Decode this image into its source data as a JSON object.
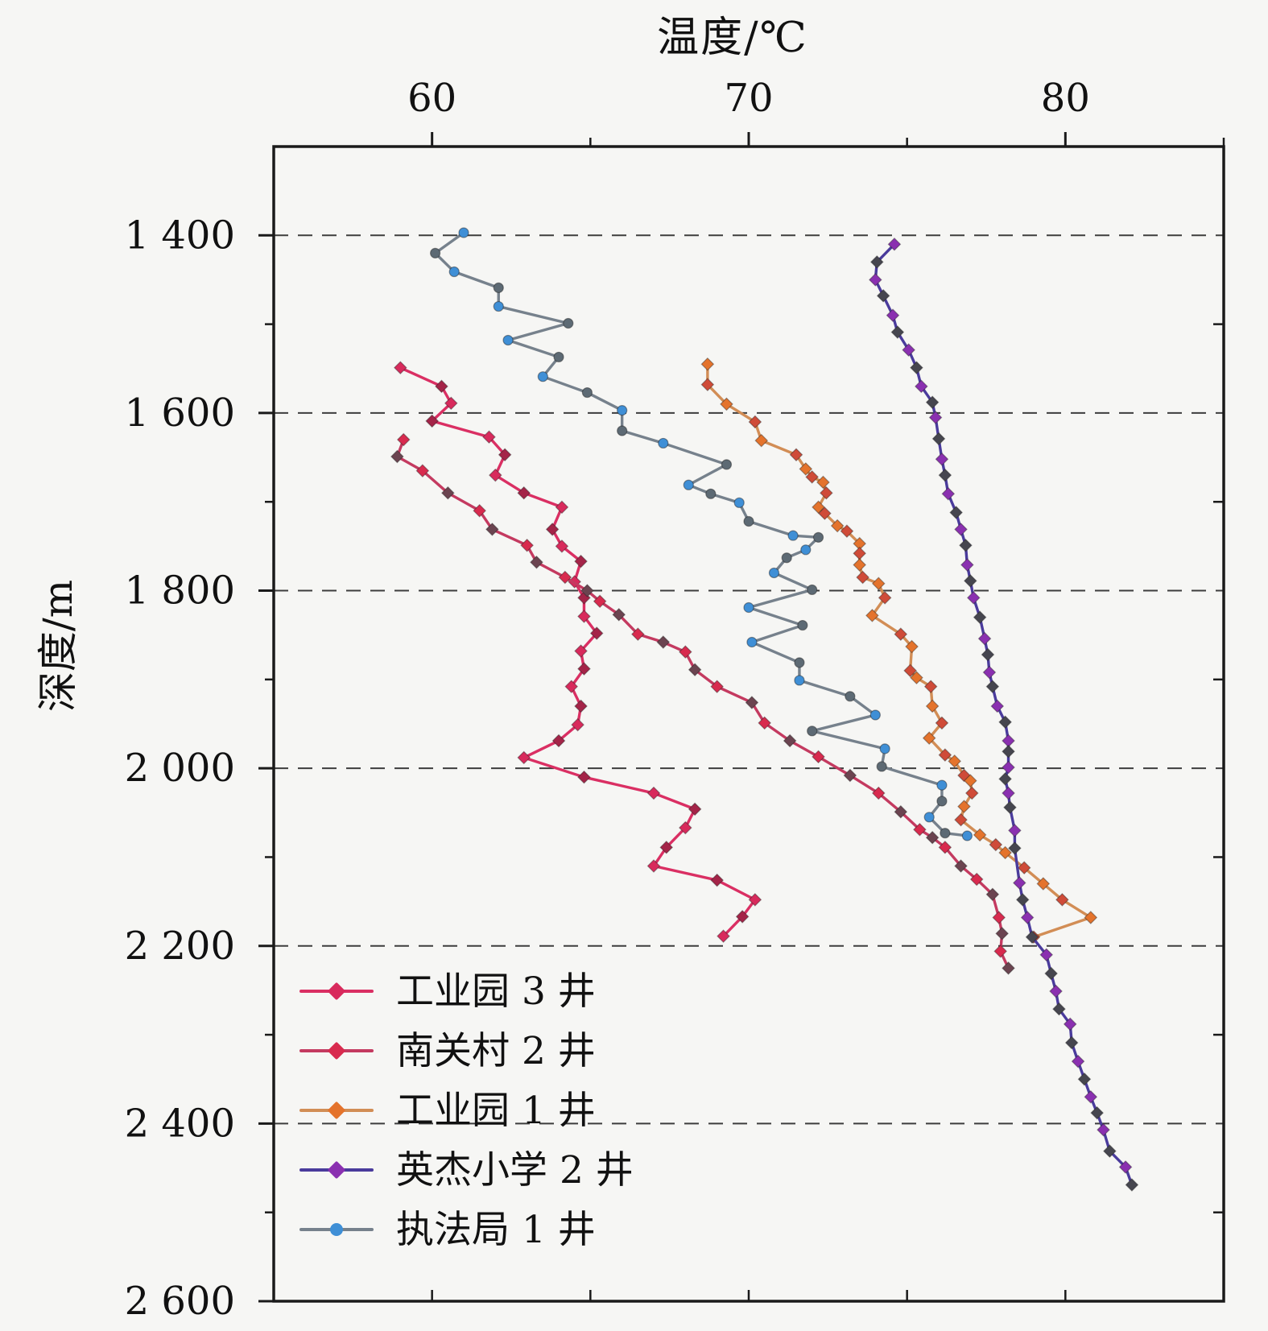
{
  "page": {
    "background": "#f6f6f4"
  },
  "chart_data": {
    "type": "line",
    "title": "温度/℃",
    "xlabel": "温度/℃",
    "ylabel": "深度/m",
    "grid": "horizontal-dashed",
    "legend_position": "inside-bottom-left",
    "x_axis": {
      "min": 55,
      "max": 85,
      "position": "top",
      "major_ticks": [
        60,
        70,
        80
      ],
      "major_tick_labels": [
        "60",
        "70",
        "80"
      ],
      "minor_ticks": [
        65,
        75,
        85
      ]
    },
    "y_axis": {
      "min": 1300,
      "max": 2600,
      "inverted": true,
      "major_ticks": [
        1400,
        1600,
        1800,
        2000,
        2200,
        2400,
        2600
      ],
      "major_tick_labels": [
        "1 400",
        "1 600",
        "1 800",
        "2 000",
        "2 200",
        "2 400",
        "2 600"
      ],
      "minor_ticks": [
        1500,
        1700,
        1900,
        2100,
        2300,
        2500
      ],
      "gridline_ticks": [
        1400,
        1600,
        1800,
        2000,
        2200,
        2400
      ]
    },
    "series": [
      {
        "name": "工业园 3 井",
        "line_color": "#da2f63",
        "marker_color": "#d82a5c",
        "marker_alt_color": "#a42448",
        "marker_shape": "diamond",
        "points": [
          [
            59.0,
            1549
          ],
          [
            60.3,
            1570
          ],
          [
            60.6,
            1589
          ],
          [
            60.0,
            1609
          ],
          [
            61.8,
            1627
          ],
          [
            62.3,
            1647
          ],
          [
            62.0,
            1670
          ],
          [
            62.9,
            1690
          ],
          [
            64.1,
            1706
          ],
          [
            63.8,
            1731
          ],
          [
            64.1,
            1750
          ],
          [
            64.7,
            1767
          ],
          [
            64.5,
            1790
          ],
          [
            64.8,
            1808
          ],
          [
            64.8,
            1829
          ],
          [
            65.2,
            1848
          ],
          [
            64.7,
            1868
          ],
          [
            64.8,
            1888
          ],
          [
            64.4,
            1908
          ],
          [
            64.7,
            1930
          ],
          [
            64.6,
            1951
          ],
          [
            64.0,
            1969
          ],
          [
            62.9,
            1988
          ],
          [
            64.8,
            2010
          ],
          [
            67.0,
            2028
          ],
          [
            68.3,
            2046
          ],
          [
            68.0,
            2067
          ],
          [
            67.4,
            2089
          ],
          [
            67.0,
            2110
          ],
          [
            69.0,
            2126
          ],
          [
            70.2,
            2148
          ],
          [
            69.8,
            2167
          ],
          [
            69.2,
            2189
          ]
        ]
      },
      {
        "name": "南关村 2 井",
        "line_color": "#c43a60",
        "marker_color": "#d82a4e",
        "marker_alt_color": "#6b4450",
        "marker_shape": "diamond",
        "points": [
          [
            59.1,
            1630
          ],
          [
            58.9,
            1649
          ],
          [
            59.7,
            1665
          ],
          [
            60.5,
            1690
          ],
          [
            61.5,
            1710
          ],
          [
            61.9,
            1731
          ],
          [
            63.0,
            1749
          ],
          [
            63.3,
            1768
          ],
          [
            64.2,
            1785
          ],
          [
            64.9,
            1800
          ],
          [
            65.3,
            1812
          ],
          [
            65.9,
            1827
          ],
          [
            66.5,
            1849
          ],
          [
            67.3,
            1858
          ],
          [
            68.0,
            1869
          ],
          [
            68.3,
            1889
          ],
          [
            69.0,
            1908
          ],
          [
            70.1,
            1926
          ],
          [
            70.5,
            1949
          ],
          [
            71.3,
            1969
          ],
          [
            72.2,
            1987
          ],
          [
            73.2,
            2008
          ],
          [
            74.1,
            2028
          ],
          [
            74.8,
            2049
          ],
          [
            75.4,
            2069
          ],
          [
            75.8,
            2078
          ],
          [
            76.2,
            2089
          ],
          [
            76.7,
            2110
          ],
          [
            77.2,
            2125
          ],
          [
            77.7,
            2142
          ],
          [
            77.9,
            2168
          ],
          [
            78.0,
            2186
          ],
          [
            77.95,
            2206
          ],
          [
            78.2,
            2225
          ]
        ]
      },
      {
        "name": "工业园 1 井",
        "line_color": "#d28d55",
        "marker_color": "#e4732c",
        "marker_alt_color": "#cf4b38",
        "marker_shape": "diamond",
        "points": [
          [
            68.7,
            1545
          ],
          [
            68.7,
            1568
          ],
          [
            69.3,
            1590
          ],
          [
            70.2,
            1610
          ],
          [
            70.4,
            1631
          ],
          [
            71.5,
            1647
          ],
          [
            71.8,
            1663
          ],
          [
            72.0,
            1672
          ],
          [
            72.35,
            1678
          ],
          [
            72.45,
            1690
          ],
          [
            72.2,
            1706
          ],
          [
            72.4,
            1713
          ],
          [
            72.8,
            1727
          ],
          [
            73.1,
            1733
          ],
          [
            73.5,
            1747
          ],
          [
            73.5,
            1758
          ],
          [
            73.5,
            1771
          ],
          [
            73.6,
            1785
          ],
          [
            74.1,
            1792
          ],
          [
            74.3,
            1808
          ],
          [
            73.9,
            1828
          ],
          [
            74.8,
            1849
          ],
          [
            75.15,
            1863
          ],
          [
            75.1,
            1890
          ],
          [
            75.3,
            1898
          ],
          [
            75.75,
            1908
          ],
          [
            75.8,
            1930
          ],
          [
            76.1,
            1949
          ],
          [
            75.7,
            1966
          ],
          [
            76.2,
            1985
          ],
          [
            76.5,
            1992
          ],
          [
            76.8,
            2008
          ],
          [
            77.0,
            2014
          ],
          [
            77.05,
            2028
          ],
          [
            76.8,
            2043
          ],
          [
            76.7,
            2058
          ],
          [
            77.3,
            2075
          ],
          [
            77.8,
            2086
          ],
          [
            78.1,
            2095
          ],
          [
            78.7,
            2112
          ],
          [
            79.3,
            2130
          ],
          [
            79.9,
            2148
          ],
          [
            80.8,
            2168
          ],
          [
            79.0,
            2190
          ]
        ]
      },
      {
        "name": "英杰小学 2 井",
        "line_color": "#4a3b9c",
        "marker_color": "#8a30b0",
        "marker_alt_color": "#46464f",
        "marker_shape": "diamond",
        "points": [
          [
            74.6,
            1410
          ],
          [
            74.05,
            1430
          ],
          [
            74.0,
            1450
          ],
          [
            74.25,
            1468
          ],
          [
            74.55,
            1490
          ],
          [
            74.7,
            1509
          ],
          [
            75.05,
            1529
          ],
          [
            75.3,
            1549
          ],
          [
            75.45,
            1570
          ],
          [
            75.8,
            1588
          ],
          [
            75.9,
            1605
          ],
          [
            76.0,
            1629
          ],
          [
            76.1,
            1652
          ],
          [
            76.2,
            1670
          ],
          [
            76.3,
            1691
          ],
          [
            76.55,
            1712
          ],
          [
            76.7,
            1731
          ],
          [
            76.85,
            1749
          ],
          [
            76.9,
            1771
          ],
          [
            77.0,
            1789
          ],
          [
            77.1,
            1808
          ],
          [
            77.3,
            1830
          ],
          [
            77.45,
            1854
          ],
          [
            77.55,
            1872
          ],
          [
            77.6,
            1892
          ],
          [
            77.7,
            1908
          ],
          [
            77.85,
            1930
          ],
          [
            78.1,
            1948
          ],
          [
            78.2,
            1969
          ],
          [
            78.2,
            1981
          ],
          [
            78.2,
            1999
          ],
          [
            78.1,
            2012
          ],
          [
            78.2,
            2028
          ],
          [
            78.25,
            2044
          ],
          [
            78.4,
            2070
          ],
          [
            78.4,
            2090
          ],
          [
            78.55,
            2129
          ],
          [
            78.65,
            2148
          ],
          [
            78.8,
            2168
          ],
          [
            78.95,
            2190
          ],
          [
            79.4,
            2210
          ],
          [
            79.55,
            2231
          ],
          [
            79.7,
            2251
          ],
          [
            79.8,
            2271
          ],
          [
            80.15,
            2288
          ],
          [
            80.2,
            2309
          ],
          [
            80.4,
            2330
          ],
          [
            80.6,
            2350
          ],
          [
            80.8,
            2370
          ],
          [
            81.0,
            2388
          ],
          [
            81.2,
            2407
          ],
          [
            81.4,
            2431
          ],
          [
            81.9,
            2449
          ],
          [
            82.1,
            2469
          ]
        ]
      },
      {
        "name": "执法局 1 井",
        "line_color": "#76818c",
        "marker_color": "#3f8fd6",
        "marker_alt_color": "#5d6a74",
        "marker_shape": "circle",
        "points": [
          [
            61.0,
            1397
          ],
          [
            60.1,
            1420
          ],
          [
            60.7,
            1441
          ],
          [
            62.1,
            1459
          ],
          [
            62.1,
            1480
          ],
          [
            64.3,
            1499
          ],
          [
            62.4,
            1518
          ],
          [
            64.0,
            1537
          ],
          [
            63.5,
            1559
          ],
          [
            64.9,
            1577
          ],
          [
            66.0,
            1597
          ],
          [
            66.0,
            1620
          ],
          [
            67.3,
            1634
          ],
          [
            69.3,
            1658
          ],
          [
            68.1,
            1681
          ],
          [
            68.8,
            1691
          ],
          [
            69.7,
            1701
          ],
          [
            70.0,
            1722
          ],
          [
            71.4,
            1738
          ],
          [
            72.2,
            1740
          ],
          [
            71.8,
            1754
          ],
          [
            71.2,
            1763
          ],
          [
            70.8,
            1780
          ],
          [
            72.0,
            1799
          ],
          [
            70.0,
            1819
          ],
          [
            71.7,
            1839
          ],
          [
            70.1,
            1858
          ],
          [
            71.6,
            1881
          ],
          [
            71.6,
            1901
          ],
          [
            73.2,
            1919
          ],
          [
            74.0,
            1940
          ],
          [
            72.0,
            1958
          ],
          [
            74.3,
            1978
          ],
          [
            74.2,
            1998
          ],
          [
            76.1,
            2019
          ],
          [
            76.1,
            2037
          ],
          [
            75.7,
            2055
          ],
          [
            76.2,
            2073
          ],
          [
            76.9,
            2076
          ]
        ]
      }
    ]
  }
}
